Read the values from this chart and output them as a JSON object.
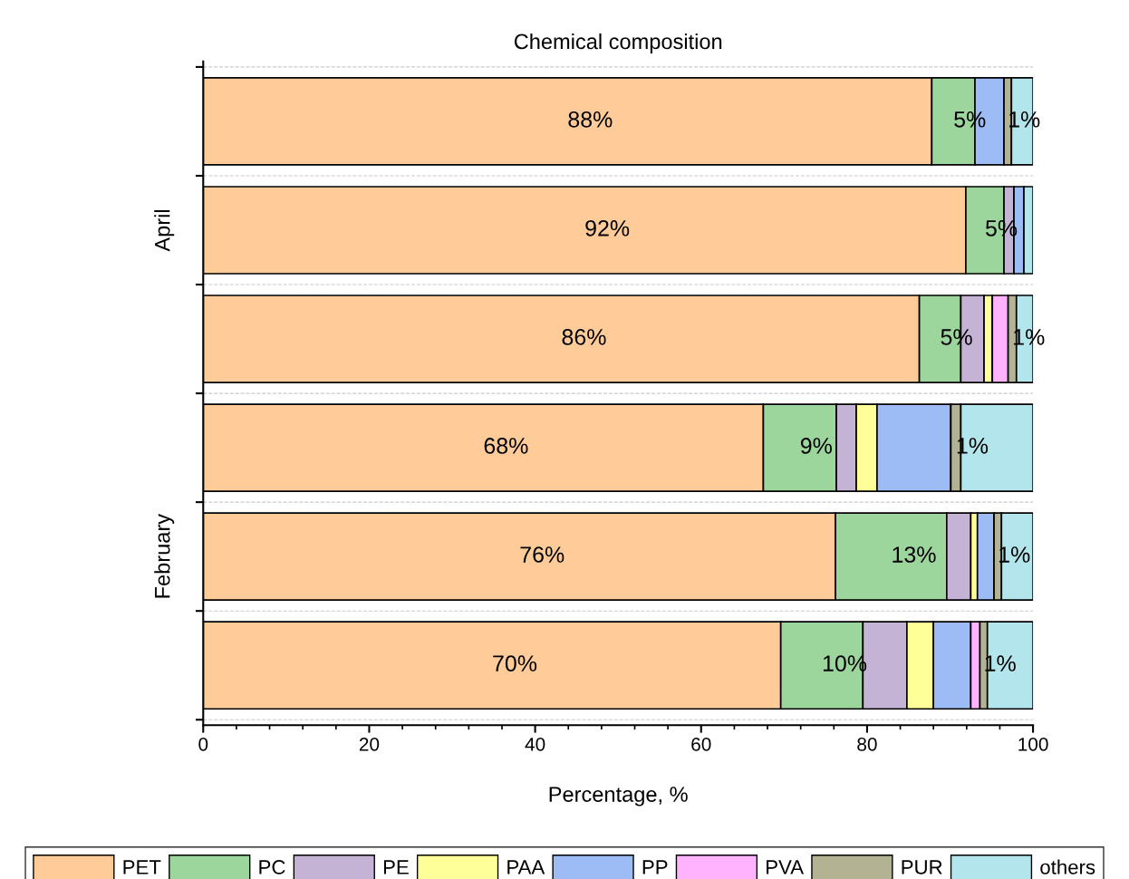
{
  "chart_data": {
    "type": "bar",
    "orientation": "horizontal",
    "stacked": true,
    "title": "Chemical composition",
    "xlabel": "Percentage, %",
    "categories": [
      null,
      null,
      null,
      null,
      null,
      null
    ],
    "series": [
      {
        "name": "PET",
        "color": "#ffcc99",
        "values": [
          87.8,
          91.9,
          86.3,
          67.5,
          76.2,
          69.6
        ],
        "value_labels": [
          "88%",
          "92%",
          "86%",
          "68%",
          "76%",
          "70%"
        ]
      },
      {
        "name": "PC",
        "color": "#9dd69d",
        "values": [
          5.2,
          4.6,
          5.0,
          8.8,
          13.4,
          9.9
        ],
        "value_labels": [
          "5%",
          "5%",
          "5%",
          "9%",
          "13%",
          "10%"
        ]
      },
      {
        "name": "PE",
        "color": "#c5b3d6",
        "values": [
          0,
          1.2,
          2.8,
          2.4,
          2.9,
          5.3
        ]
      },
      {
        "name": "PAA",
        "color": "#ffff99",
        "values": [
          0,
          0,
          1.0,
          2.5,
          0.8,
          3.2
        ]
      },
      {
        "name": "PP",
        "color": "#9dbbf5",
        "values": [
          3.5,
          1.2,
          0,
          8.9,
          2.0,
          4.5
        ]
      },
      {
        "name": "PVA",
        "color": "#ffb3ff",
        "values": [
          0,
          0,
          1.9,
          0,
          0,
          1.1
        ]
      },
      {
        "name": "PUR",
        "color": "#b3b393",
        "values": [
          0.9,
          0,
          1.0,
          1.2,
          0.9,
          0.9
        ],
        "value_labels": [
          "1%",
          null,
          "1%",
          "1%",
          "1%",
          "1%"
        ]
      },
      {
        "name": "others",
        "color": "#b3e6ec",
        "values": [
          2.6,
          1.1,
          2.0,
          8.7,
          3.8,
          5.5
        ]
      }
    ],
    "annotations": [
      "April",
      "February"
    ],
    "xlim": [
      0,
      100
    ],
    "xticks": [
      0,
      20,
      40,
      60,
      80,
      100
    ],
    "grid": "y",
    "legend": "bottom",
    "tick_labels": "x"
  }
}
